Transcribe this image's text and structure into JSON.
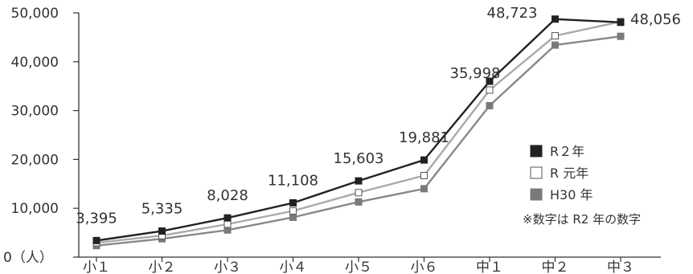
{
  "chart_data": {
    "type": "line",
    "categories": [
      "小１",
      "小２",
      "小３",
      "小４",
      "小５",
      "小６",
      "中１",
      "中２",
      "中３"
    ],
    "ylim": [
      0,
      50000
    ],
    "yticks": [
      {
        "value": 0,
        "label": "0（人）"
      },
      {
        "value": 10000,
        "label": "10,000"
      },
      {
        "value": 20000,
        "label": "20,000"
      },
      {
        "value": 30000,
        "label": "30,000"
      },
      {
        "value": 40000,
        "label": "40,000"
      },
      {
        "value": 50000,
        "label": "50,000"
      }
    ],
    "grid": false,
    "legend_position": "right",
    "series": [
      {
        "name": "R２年",
        "color": "#222222",
        "marker_fill": "#222222",
        "marker_stroke": "#222222",
        "values": [
          3395,
          5335,
          8028,
          11108,
          15603,
          19881,
          35998,
          48723,
          48056
        ]
      },
      {
        "name": "R 元年",
        "color": "#aaaaaa",
        "marker_fill": "#ffffff",
        "marker_stroke": "#555555",
        "values": [
          2950,
          4400,
          6750,
          9450,
          13200,
          16700,
          34200,
          45300,
          48200
        ]
      },
      {
        "name": "H30 年",
        "color": "#888888",
        "marker_fill": "#7a7a7a",
        "marker_stroke": "#7a7a7a",
        "values": [
          2350,
          3750,
          5550,
          8150,
          11300,
          14000,
          31000,
          43400,
          45200
        ]
      }
    ],
    "data_labels": [
      "3,395",
      "5,335",
      "8,028",
      "11,108",
      "15,603",
      "19,881",
      "35,998",
      "48,723",
      "48,056"
    ],
    "note": "※数字は R2 年の数字"
  }
}
